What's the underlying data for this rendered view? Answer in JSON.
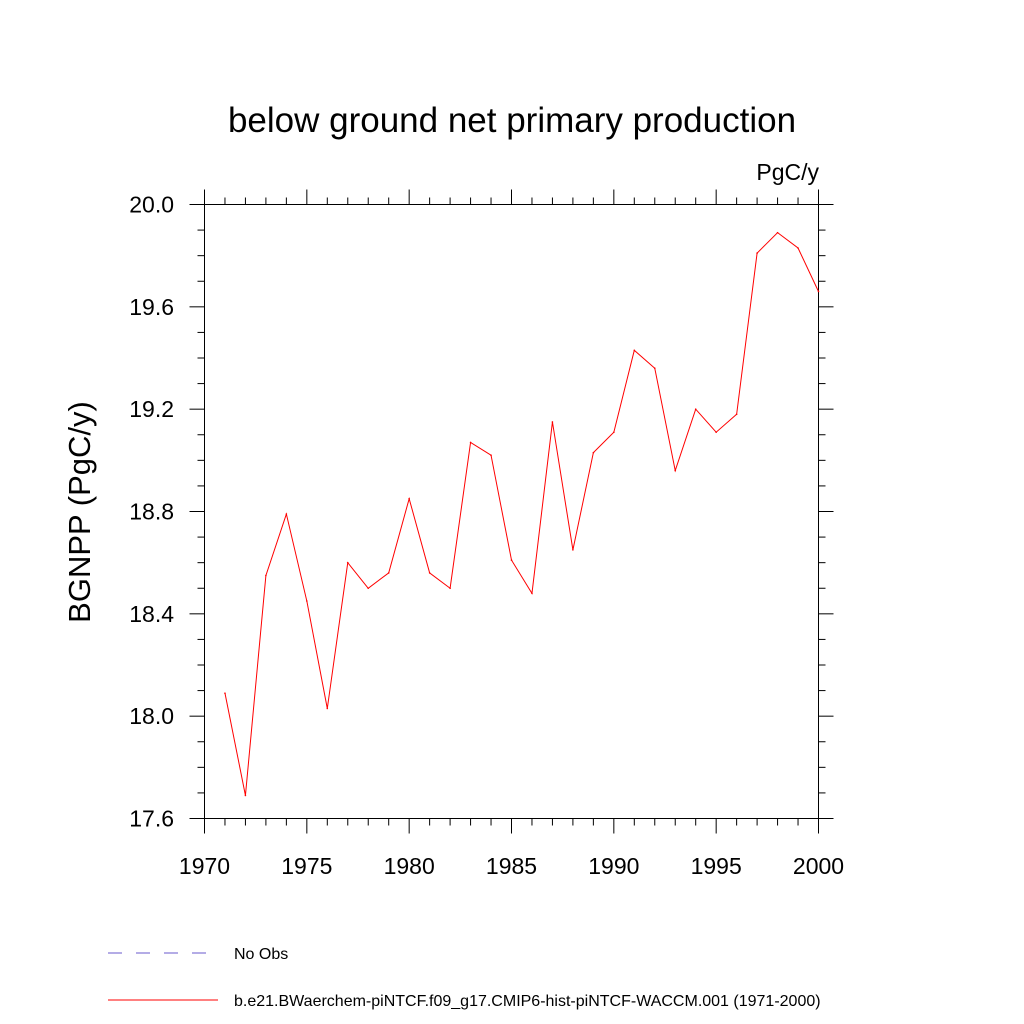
{
  "chart_data": {
    "type": "line",
    "title": "below ground net primary production",
    "units_label": "PgC/y",
    "ylabel": "BGNPP  (PgC/y)",
    "xlabel": "",
    "xlim": [
      1970,
      2000
    ],
    "ylim": [
      17.6,
      20.0
    ],
    "x_ticks": [
      "1970",
      "1975",
      "1980",
      "1985",
      "1990",
      "1995",
      "2000"
    ],
    "y_ticks": [
      "17.6",
      "18.0",
      "18.4",
      "18.8",
      "19.2",
      "19.6",
      "20.0"
    ],
    "x_tick_values": [
      1970,
      1975,
      1980,
      1985,
      1990,
      1995,
      2000
    ],
    "y_tick_values": [
      17.6,
      18.0,
      18.4,
      18.8,
      19.2,
      19.6,
      20.0
    ],
    "series": [
      {
        "name": "b.e21.BWaerchem-piNTCF.f09_g17.CMIP6-hist-piNTCF-WACCM.001 (1971-2000)",
        "color": "#ff0000",
        "x": [
          1971,
          1972,
          1973,
          1974,
          1975,
          1976,
          1977,
          1978,
          1979,
          1980,
          1981,
          1982,
          1983,
          1984,
          1985,
          1986,
          1987,
          1988,
          1989,
          1990,
          1991,
          1992,
          1993,
          1994,
          1995,
          1996,
          1997,
          1998,
          1999,
          2000
        ],
        "values": [
          18.09,
          17.69,
          18.55,
          18.79,
          18.45,
          18.03,
          18.6,
          18.5,
          18.56,
          18.85,
          18.56,
          18.5,
          19.07,
          19.02,
          18.61,
          18.48,
          19.15,
          18.65,
          19.03,
          19.11,
          19.43,
          19.36,
          18.96,
          19.2,
          19.11,
          19.18,
          19.81,
          19.89,
          19.83,
          19.66
        ]
      }
    ],
    "legend": [
      {
        "label": "No Obs",
        "color": "#6a5acd",
        "style": "dashed"
      },
      {
        "label": "b.e21.BWaerchem-piNTCF.f09_g17.CMIP6-hist-piNTCF-WACCM.001 (1971-2000)",
        "color": "#ff0000",
        "style": "solid"
      }
    ],
    "legend_position": "bottom-left",
    "grid": false
  }
}
